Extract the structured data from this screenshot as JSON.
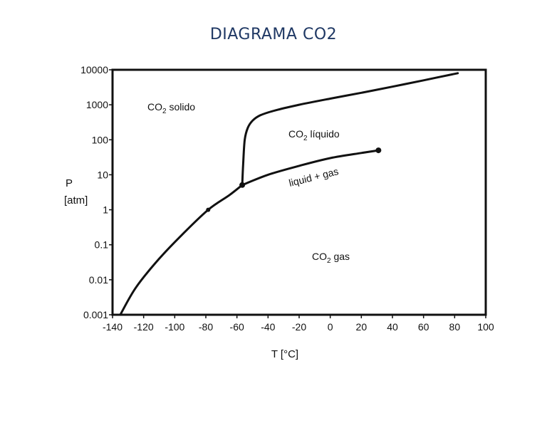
{
  "slide": {
    "title": "DIAGRAMA CO2"
  },
  "chart_data": {
    "type": "line",
    "title": "DIAGRAMA CO2",
    "xlabel": "T [°C]",
    "ylabel_line1": "P",
    "ylabel_line2": "[atm]",
    "xlim": [
      -140,
      100
    ],
    "ylim": [
      0.001,
      10000
    ],
    "yscale": "log",
    "grid": false,
    "xticks": [
      -140,
      -120,
      -100,
      -80,
      -60,
      -40,
      -20,
      0,
      20,
      40,
      60,
      80,
      100
    ],
    "ytick_values": [
      0.001,
      0.01,
      0.1,
      1,
      10,
      100,
      1000,
      10000
    ],
    "ytick_labels": [
      "0.001",
      "0.01",
      "0.1",
      "1",
      "10",
      "100",
      "1000",
      "10000"
    ],
    "series": [
      {
        "role": "sublimation",
        "x": [
          -135,
          -125,
          -110,
          -95,
          -78.5,
          -65,
          -56.6
        ],
        "y": [
          0.001,
          0.006,
          0.04,
          0.2,
          1,
          2.6,
          5.1
        ]
      },
      {
        "role": "vaporization",
        "x": [
          -56.6,
          -40,
          -20,
          0,
          20,
          31
        ],
        "y": [
          5.1,
          10,
          18,
          30,
          42,
          50
        ]
      },
      {
        "role": "fusion",
        "x": [
          -56.6,
          -56,
          -55,
          -53,
          -50,
          -45,
          -35,
          -20,
          0,
          20,
          40,
          60,
          82
        ],
        "y": [
          5.1,
          20,
          100,
          220,
          350,
          500,
          700,
          1000,
          1500,
          2200,
          3300,
          5000,
          8000
        ]
      }
    ],
    "markers": [
      {
        "x": -78.5,
        "y": 1
      },
      {
        "x": -56.6,
        "y": 5.1
      },
      {
        "x": 31,
        "y": 50
      }
    ],
    "regions": {
      "solid_main": "CO",
      "solid_sub": "2",
      "solid_rest": " solido",
      "liquid_main": "CO",
      "liquid_sub": "2",
      "liquid_rest": " líquido",
      "gas_main": "CO",
      "gas_sub": "2",
      "gas_rest": " gas",
      "equilibrium": "liquid + gas"
    }
  }
}
